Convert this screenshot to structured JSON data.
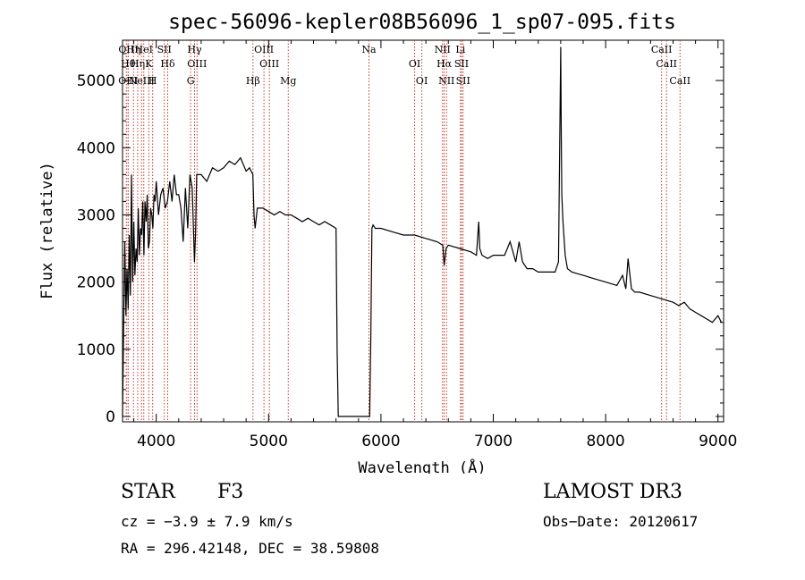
{
  "chart_data": {
    "type": "line",
    "title": "spec-56096-kepler08B56096_1_sp07-095.fits",
    "xlabel": "Wavelength (Å)",
    "ylabel": "Flux (relative)",
    "xlim": [
      3700,
      9050
    ],
    "ylim": [
      -80,
      5600
    ],
    "xticks": [
      4000,
      5000,
      6000,
      7000,
      8000,
      9000
    ],
    "yticks": [
      0,
      1000,
      2000,
      3000,
      4000,
      5000
    ],
    "series": [
      {
        "name": "Flux",
        "x": [
          3700,
          3710,
          3720,
          3730,
          3740,
          3750,
          3760,
          3770,
          3780,
          3790,
          3800,
          3810,
          3820,
          3830,
          3840,
          3850,
          3860,
          3870,
          3880,
          3890,
          3900,
          3910,
          3920,
          3930,
          3940,
          3950,
          3960,
          3970,
          3980,
          3990,
          4000,
          4020,
          4040,
          4060,
          4080,
          4100,
          4120,
          4140,
          4160,
          4180,
          4200,
          4220,
          4240,
          4260,
          4280,
          4300,
          4320,
          4340,
          4350,
          4360,
          4380,
          4400,
          4450,
          4500,
          4550,
          4600,
          4650,
          4700,
          4750,
          4800,
          4830,
          4860,
          4870,
          4880,
          4900,
          4950,
          5000,
          5050,
          5100,
          5150,
          5200,
          5250,
          5300,
          5350,
          5400,
          5450,
          5500,
          5550,
          5600,
          5610,
          5620,
          5640,
          5700,
          5800,
          5900,
          5910,
          5920,
          5930,
          5950,
          6000,
          6100,
          6200,
          6300,
          6400,
          6500,
          6550,
          6563,
          6580,
          6600,
          6700,
          6800,
          6850,
          6870,
          6880,
          6900,
          6950,
          7000,
          7100,
          7150,
          7200,
          7230,
          7260,
          7300,
          7350,
          7400,
          7500,
          7550,
          7580,
          7600,
          7605,
          7610,
          7620,
          7640,
          7660,
          7700,
          7800,
          7900,
          8000,
          8100,
          8150,
          8180,
          8200,
          8230,
          8260,
          8300,
          8400,
          8500,
          8600,
          8650,
          8700,
          8750,
          8800,
          8850,
          8900,
          8950,
          9000,
          9030
        ],
        "values": [
          0,
          1400,
          2600,
          1500,
          2200,
          1600,
          2700,
          1800,
          3600,
          2000,
          2900,
          2100,
          2500,
          2300,
          3100,
          2400,
          2800,
          2700,
          3200,
          2400,
          3200,
          2900,
          3300,
          2500,
          2600,
          3100,
          3000,
          2800,
          3300,
          3200,
          3500,
          3000,
          3300,
          3400,
          3100,
          3200,
          3500,
          3200,
          3600,
          3300,
          3300,
          3100,
          2600,
          3400,
          2800,
          3600,
          3400,
          2300,
          2700,
          3600,
          3600,
          3600,
          3500,
          3700,
          3650,
          3700,
          3800,
          3750,
          3850,
          3650,
          3700,
          3600,
          3000,
          2800,
          3100,
          3100,
          3050,
          3000,
          3050,
          3000,
          3000,
          2950,
          2900,
          2950,
          2900,
          2850,
          2900,
          2850,
          2800,
          1000,
          0,
          0,
          0,
          0,
          0,
          1200,
          2800,
          2850,
          2800,
          2800,
          2750,
          2700,
          2700,
          2650,
          2600,
          2550,
          2250,
          2500,
          2550,
          2500,
          2450,
          2400,
          2900,
          2500,
          2400,
          2350,
          2400,
          2400,
          2600,
          2300,
          2600,
          2300,
          2200,
          2200,
          2150,
          2150,
          2150,
          2300,
          5500,
          4200,
          3300,
          2900,
          2400,
          2200,
          2150,
          2100,
          2050,
          2000,
          1950,
          2100,
          1900,
          2350,
          1900,
          1850,
          1850,
          1800,
          1750,
          1700,
          1650,
          1700,
          1600,
          1550,
          1500,
          1450,
          1400,
          1500,
          1400
        ]
      }
    ],
    "lines": [
      {
        "wl": 3734,
        "label": "OII"
      },
      {
        "wl": 3750,
        "label": "Hθ"
      },
      {
        "wl": 3750,
        "label": "OIII"
      },
      {
        "wl": 3798,
        "label": "Hη"
      },
      {
        "wl": 3835,
        "label": "Hη"
      },
      {
        "wl": 3869,
        "label": "NeIII"
      },
      {
        "wl": 3889,
        "label": "HeI"
      },
      {
        "wl": 3934,
        "label": "K"
      },
      {
        "wl": 3968,
        "label": "H"
      },
      {
        "wl": 4072,
        "label": "SII"
      },
      {
        "wl": 4102,
        "label": "Hδ"
      },
      {
        "wl": 4306,
        "label": "G"
      },
      {
        "wl": 4341,
        "label": "Hγ"
      },
      {
        "wl": 4363,
        "label": "OIII"
      },
      {
        "wl": 4861,
        "label": "Hβ"
      },
      {
        "wl": 4959,
        "label": "OIII"
      },
      {
        "wl": 5007,
        "label": "OIII"
      },
      {
        "wl": 5175,
        "label": "Mg"
      },
      {
        "wl": 5893,
        "label": "Na"
      },
      {
        "wl": 6300,
        "label": "OI"
      },
      {
        "wl": 6364,
        "label": "OI"
      },
      {
        "wl": 6548,
        "label": "NII"
      },
      {
        "wl": 6563,
        "label": "Hα"
      },
      {
        "wl": 6584,
        "label": "NII"
      },
      {
        "wl": 6708,
        "label": "Li"
      },
      {
        "wl": 6717,
        "label": "SII"
      },
      {
        "wl": 6731,
        "label": "SII"
      },
      {
        "wl": 8498,
        "label": "CaII"
      },
      {
        "wl": 8542,
        "label": "CaII"
      },
      {
        "wl": 8662,
        "label": "CaII"
      }
    ]
  },
  "info": {
    "object_type": "STAR",
    "subclass": "F3",
    "survey": "LAMOST DR3",
    "cz": "cz = −3.9 ± 7.9 km/s",
    "obs_date": "Obs−Date: 20120617",
    "coords": "RA = 296.42148, DEC =  38.59808"
  }
}
